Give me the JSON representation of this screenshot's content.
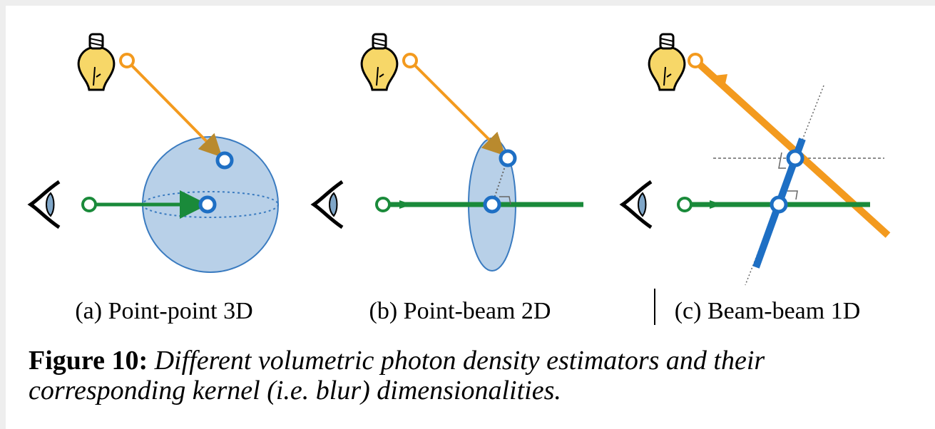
{
  "panels": [
    {
      "caption": "(a) Point-point 3D"
    },
    {
      "caption": "(b) Point-beam 2D"
    },
    {
      "caption": "(c) Beam-beam 1D"
    }
  ],
  "figure": {
    "label": "Figure 10:",
    "caption_lines": [
      "Different volumetric photon density estimators and their",
      "corresponding kernel (i.e. blur) dimensionalities."
    ]
  }
}
